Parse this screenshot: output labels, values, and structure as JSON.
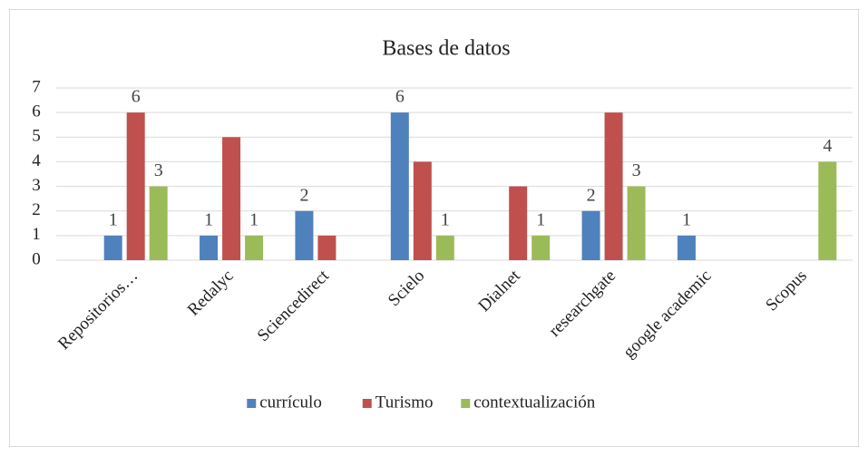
{
  "chart_data": {
    "type": "bar",
    "title": "Bases de datos",
    "categories": [
      "Repositorios…",
      "Redalyc",
      "Sciencedirect",
      "Scielo",
      "Dialnet",
      "researchgate",
      "google academic",
      "Scopus"
    ],
    "series": [
      {
        "name": "currículo",
        "color": "#4f81bd",
        "values": [
          1,
          1,
          2,
          6,
          null,
          2,
          1,
          null
        ],
        "value_labels": [
          "1",
          "1",
          "2",
          "6",
          null,
          "2",
          "1",
          null
        ]
      },
      {
        "name": "Turismo",
        "color": "#c0504d",
        "values": [
          6,
          5,
          1,
          4,
          3,
          6,
          null,
          null
        ],
        "value_labels": [
          "6",
          null,
          null,
          null,
          null,
          null,
          null,
          null
        ]
      },
      {
        "name": "contextualización",
        "color": "#9bbb59",
        "values": [
          3,
          1,
          null,
          1,
          1,
          3,
          null,
          4
        ],
        "value_labels": [
          "3",
          "1",
          null,
          "1",
          "1",
          "3",
          null,
          "4"
        ]
      }
    ],
    "ylim": [
      0,
      7
    ],
    "yticks": [
      0,
      1,
      2,
      3,
      4,
      5,
      6,
      7
    ],
    "grid": true,
    "legend": "bottom"
  }
}
